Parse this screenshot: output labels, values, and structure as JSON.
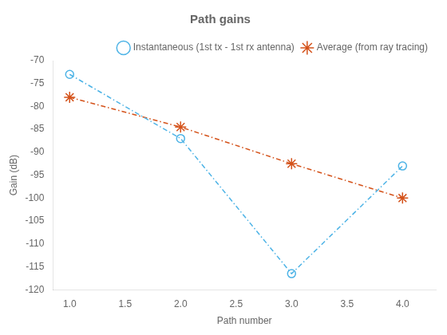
{
  "chart_data": {
    "type": "line",
    "title": "Path gains",
    "xlabel": "Path number",
    "ylabel": "Gain (dB)",
    "x": [
      1,
      2,
      3,
      4
    ],
    "series": [
      {
        "name": "Instantaneous (1st tx - 1st rx antenna)",
        "color": "#4DB3E6",
        "values": [
          -73.0,
          -87.0,
          -116.5,
          -93.0
        ],
        "marker": "circle",
        "line_style": "dashdot"
      },
      {
        "name": "Average (from ray tracing)",
        "color": "#D4521A",
        "values": [
          -78.0,
          -84.5,
          -92.5,
          -100.0
        ],
        "marker": "star",
        "line_style": "dashdot"
      }
    ],
    "xlim": [
      0.85,
      4.3
    ],
    "xticks": [
      {
        "value": 1,
        "label": "1.0"
      },
      1.5,
      {
        "value": 2,
        "label": "2.0"
      },
      2.5,
      {
        "value": 3,
        "label": "3.0"
      },
      3.5,
      {
        "value": 4,
        "label": "4.0"
      }
    ],
    "ylim": [
      -120,
      -70
    ],
    "yticks": [
      -120,
      -115,
      -110,
      -105,
      -100,
      -95,
      -90,
      -85,
      -80,
      -75,
      -70
    ],
    "grid": false,
    "legend": "upper right"
  }
}
